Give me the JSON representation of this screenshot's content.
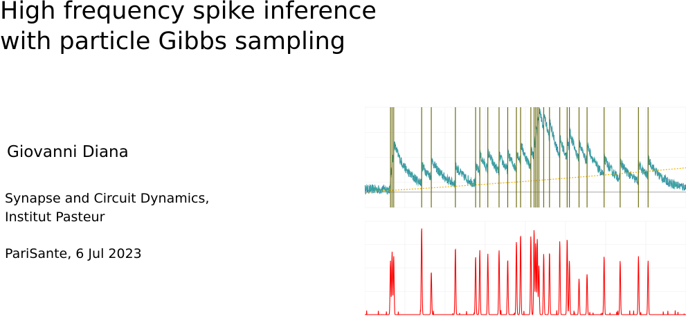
{
  "slide": {
    "title_line1": "High frequency spike inference",
    "title_line2": "with particle Gibbs sampling",
    "author": "Giovanni Diana",
    "affiliation_line1": "Synapse and Circuit Dynamics,",
    "affiliation_line2": "Institut Pasteur",
    "event": "PariSante, 6 Jul 2023"
  },
  "colors": {
    "trace_dark": "#2a6fa8",
    "trace_light": "#3fb0a0",
    "spike_lines": "#6b6b10",
    "baseline": "#b8b8b8",
    "drift": "#f0b000",
    "rate": "#ff0000",
    "grid": "#ececec"
  },
  "chart_data": {
    "type": "line",
    "spike_times": [
      0.08,
      0.085,
      0.09,
      0.177,
      0.207,
      0.282,
      0.345,
      0.358,
      0.383,
      0.418,
      0.445,
      0.472,
      0.485,
      0.517,
      0.527,
      0.532,
      0.537,
      0.542,
      0.557,
      0.575,
      0.607,
      0.63,
      0.637,
      0.667,
      0.692,
      0.745,
      0.795,
      0.852,
      0.882
    ],
    "trace_params": {
      "baseline_level": 0.1,
      "decay": 0.045,
      "amplitude": 0.12,
      "noise": 0.03,
      "drift_start": 0.0,
      "drift_end": 0.1
    },
    "rate_peaks": [
      0.08,
      0.085,
      0.09,
      0.177,
      0.207,
      0.282,
      0.345,
      0.358,
      0.383,
      0.418,
      0.445,
      0.472,
      0.485,
      0.517,
      0.527,
      0.532,
      0.537,
      0.542,
      0.557,
      0.575,
      0.607,
      0.63,
      0.637,
      0.667,
      0.692,
      0.745,
      0.795,
      0.852,
      0.882
    ],
    "rate_heights": [
      0.6,
      0.7,
      0.65,
      0.98,
      0.48,
      0.75,
      0.65,
      0.72,
      0.68,
      0.72,
      0.62,
      0.82,
      0.9,
      0.88,
      0.95,
      0.8,
      0.85,
      0.55,
      0.68,
      0.7,
      0.82,
      0.85,
      0.6,
      0.4,
      0.45,
      0.65,
      0.6,
      0.65,
      0.6
    ]
  }
}
